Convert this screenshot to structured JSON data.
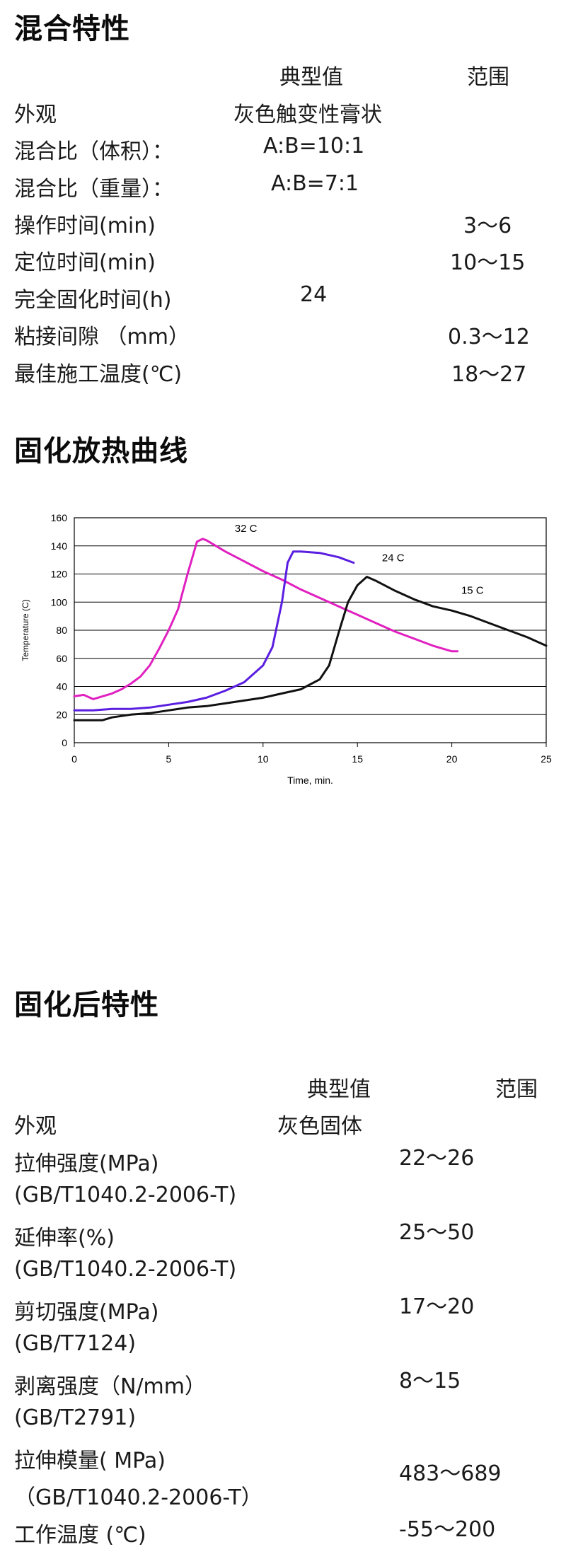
{
  "section1": {
    "title": "混合特性",
    "col_typical": "典型值",
    "col_range": "范围",
    "rows": [
      {
        "label": "外观",
        "typical": "灰色触变性膏状",
        "range": ""
      },
      {
        "label": "混合比（体积）：",
        "typical": "A:B=10:1",
        "range": ""
      },
      {
        "label": "混合比（重量）：",
        "typical": "A:B=7:1",
        "range": ""
      },
      {
        "label": "操作时间(min)",
        "typical": "",
        "range": "3～6"
      },
      {
        "label": "定位时间(min)",
        "typical": "",
        "range": "10～15"
      },
      {
        "label": "完全固化时间(h)",
        "typical": "24",
        "range": ""
      },
      {
        "label": "粘接间隙 （mm）",
        "typical": "",
        "range": "0.3～12"
      },
      {
        "label": "最佳施工温度(℃)",
        "typical": "",
        "range": "18～27"
      }
    ]
  },
  "section2": {
    "title": "固化放热曲线"
  },
  "chart_data": {
    "type": "line",
    "xlabel": "Time, min.",
    "ylabel": "Temperature (C)",
    "xlim": [
      0,
      25
    ],
    "ylim": [
      0,
      160
    ],
    "xticks": [
      0,
      5,
      10,
      15,
      20,
      25
    ],
    "yticks": [
      0,
      20,
      40,
      60,
      80,
      100,
      120,
      140,
      160
    ],
    "grid": "horizontal",
    "series": [
      {
        "name": "32 C",
        "color": "#e020c0",
        "points": [
          [
            0,
            33
          ],
          [
            0.5,
            34
          ],
          [
            1,
            31
          ],
          [
            1.5,
            33
          ],
          [
            2,
            35
          ],
          [
            2.5,
            38
          ],
          [
            3,
            42
          ],
          [
            3.5,
            47
          ],
          [
            4,
            55
          ],
          [
            4.5,
            67
          ],
          [
            5,
            80
          ],
          [
            5.5,
            95
          ],
          [
            6,
            120
          ],
          [
            6.5,
            143
          ],
          [
            6.8,
            145
          ],
          [
            7,
            144
          ],
          [
            8,
            136
          ],
          [
            9,
            129
          ],
          [
            10,
            122
          ],
          [
            11,
            116
          ],
          [
            12,
            109
          ],
          [
            13,
            103
          ],
          [
            14,
            97
          ],
          [
            15,
            91
          ],
          [
            16,
            85
          ],
          [
            17,
            79
          ],
          [
            18,
            74
          ],
          [
            19,
            69
          ],
          [
            20,
            65
          ],
          [
            20.3,
            65
          ]
        ]
      },
      {
        "name": "24 C",
        "color": "#5a1ee0",
        "points": [
          [
            0,
            23
          ],
          [
            1,
            23
          ],
          [
            2,
            24
          ],
          [
            3,
            24
          ],
          [
            4,
            25
          ],
          [
            5,
            27
          ],
          [
            6,
            29
          ],
          [
            7,
            32
          ],
          [
            8,
            37
          ],
          [
            9,
            43
          ],
          [
            10,
            55
          ],
          [
            10.5,
            68
          ],
          [
            11,
            100
          ],
          [
            11.3,
            128
          ],
          [
            11.6,
            136
          ],
          [
            12,
            136
          ],
          [
            13,
            135
          ],
          [
            14,
            132
          ],
          [
            14.8,
            128
          ]
        ]
      },
      {
        "name": "15 C",
        "color": "#111111",
        "points": [
          [
            0,
            16
          ],
          [
            1,
            16
          ],
          [
            1.5,
            16
          ],
          [
            2,
            18
          ],
          [
            3,
            20
          ],
          [
            4,
            21
          ],
          [
            5,
            23
          ],
          [
            6,
            25
          ],
          [
            7,
            26
          ],
          [
            8,
            28
          ],
          [
            9,
            30
          ],
          [
            10,
            32
          ],
          [
            11,
            35
          ],
          [
            12,
            38
          ],
          [
            13,
            45
          ],
          [
            13.5,
            55
          ],
          [
            14,
            78
          ],
          [
            14.5,
            100
          ],
          [
            15,
            112
          ],
          [
            15.5,
            118
          ],
          [
            16,
            115
          ],
          [
            17,
            108
          ],
          [
            18,
            102
          ],
          [
            19,
            97
          ],
          [
            20,
            94
          ],
          [
            21,
            90
          ],
          [
            22,
            85
          ],
          [
            23,
            80
          ],
          [
            24,
            75
          ],
          [
            25,
            69
          ]
        ]
      }
    ],
    "annotations": [
      {
        "text": "32 C",
        "x": 8.5,
        "y": 150
      },
      {
        "text": "24 C",
        "x": 16.3,
        "y": 129
      },
      {
        "text": "15 C",
        "x": 20.5,
        "y": 106
      }
    ]
  },
  "section3": {
    "title": "固化后特性",
    "col_typical": "典型值",
    "col_range": "范围",
    "rows": [
      {
        "label": "外观",
        "typical": "灰色固体",
        "range": ""
      },
      {
        "label": "拉伸强度(MPa)",
        "label2": "(GB/T1040.2-2006-T)",
        "typical": "22～26",
        "range": ""
      },
      {
        "label": "延伸率(%)",
        "label2": "(GB/T1040.2-2006-T)",
        "typical": "25～50",
        "range": ""
      },
      {
        "label": "剪切强度(MPa)",
        "label2": "(GB/T7124)",
        "typical": "17～20",
        "range": ""
      },
      {
        "label": "剥离强度（N/mm）",
        "label2": "(GB/T2791)",
        "typical": "8～15",
        "range": ""
      },
      {
        "label": "拉伸模量( MPa)",
        "label2": "（GB/T1040.2-2006-T）",
        "typical": "483～689",
        "range": ""
      },
      {
        "label": "工作温度 (℃)",
        "typical": "-55～200",
        "range": ""
      }
    ]
  }
}
